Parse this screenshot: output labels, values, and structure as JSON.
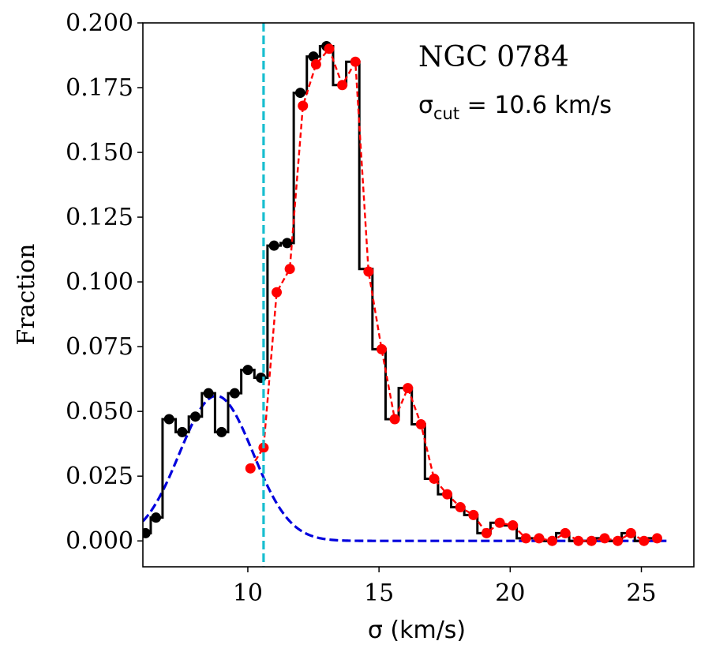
{
  "chart_data": {
    "type": "line",
    "title": "",
    "xlabel": "σ (km/s)",
    "ylabel": "Fraction",
    "xlim": [
      6.0,
      27.0
    ],
    "ylim": [
      -0.01,
      0.2
    ],
    "xticks": [
      10,
      15,
      20,
      25
    ],
    "xtick_labels": [
      "10",
      "15",
      "20",
      "25"
    ],
    "yticks": [
      0.0,
      0.025,
      0.05,
      0.075,
      0.1,
      0.125,
      0.15,
      0.175,
      0.2
    ],
    "ytick_labels": [
      "0.000",
      "0.025",
      "0.050",
      "0.075",
      "0.100",
      "0.125",
      "0.150",
      "0.175",
      "0.200"
    ],
    "annotations": {
      "galaxy": "NGC 0784",
      "cut_sigma": "σ",
      "cut_sub": "cut",
      "cut_rest": " = 10.6 km/s"
    },
    "cut_line": {
      "x": 10.6,
      "color": "#17becf",
      "style": "dashed"
    },
    "series": [
      {
        "name": "histogram",
        "style": "steps-mid",
        "color": "#000000",
        "x": [
          6.1,
          6.5,
          7.0,
          7.5,
          8.0,
          8.5,
          9.0,
          9.5,
          10.0,
          10.5,
          11.0,
          11.5,
          12.0,
          12.5,
          13.0,
          13.5,
          14.0,
          14.5,
          15.0,
          15.5,
          16.0,
          16.5,
          17.0,
          17.5,
          18.0,
          18.5,
          19.0,
          19.5,
          20.0,
          20.5,
          21.0,
          21.5,
          22.0,
          22.5,
          23.0,
          23.5,
          24.0,
          24.5,
          25.0,
          25.5
        ],
        "values": [
          0.003,
          0.009,
          0.047,
          0.042,
          0.048,
          0.057,
          0.042,
          0.057,
          0.066,
          0.063,
          0.114,
          0.115,
          0.173,
          0.187,
          0.191,
          0.176,
          0.185,
          0.105,
          0.074,
          0.047,
          0.059,
          0.045,
          0.024,
          0.018,
          0.013,
          0.01,
          0.003,
          0.007,
          0.006,
          0.001,
          0.001,
          0.0,
          0.003,
          0.0,
          0.0,
          0.001,
          0.0,
          0.003,
          0.0,
          0.001
        ]
      },
      {
        "name": "low-sigma points",
        "style": "markers",
        "color": "#000000",
        "x": [
          6.1,
          6.5,
          7.0,
          7.5,
          8.0,
          8.5,
          9.0,
          9.5,
          10.0,
          10.5,
          11.0,
          11.5,
          12.0,
          12.5,
          13.0
        ],
        "values": [
          0.003,
          0.009,
          0.047,
          0.042,
          0.048,
          0.057,
          0.042,
          0.057,
          0.066,
          0.063,
          0.114,
          0.115,
          0.173,
          0.187,
          0.191
        ]
      },
      {
        "name": "high-sigma fit",
        "style": "dashed-markers",
        "color": "#ff0000",
        "x": [
          10.1,
          10.6,
          11.1,
          11.6,
          12.1,
          12.6,
          13.1,
          13.6,
          14.1,
          14.6,
          15.1,
          15.6,
          16.1,
          16.6,
          17.1,
          17.6,
          18.1,
          18.6,
          19.1,
          19.6,
          20.1,
          20.6,
          21.1,
          21.6,
          22.1,
          22.6,
          23.1,
          23.6,
          24.1,
          24.6,
          25.1,
          25.6
        ],
        "values": [
          0.028,
          0.036,
          0.096,
          0.105,
          0.168,
          0.184,
          0.19,
          0.176,
          0.185,
          0.104,
          0.074,
          0.047,
          0.059,
          0.045,
          0.024,
          0.018,
          0.013,
          0.01,
          0.003,
          0.007,
          0.006,
          0.001,
          0.001,
          0.0,
          0.003,
          0.0,
          0.0,
          0.001,
          0.0,
          0.003,
          0.0,
          0.001
        ]
      },
      {
        "name": "gaussian",
        "style": "dashed",
        "color": "#0000dd",
        "mu": 8.8,
        "sigma": 1.4,
        "amplitude": 0.056
      }
    ]
  }
}
